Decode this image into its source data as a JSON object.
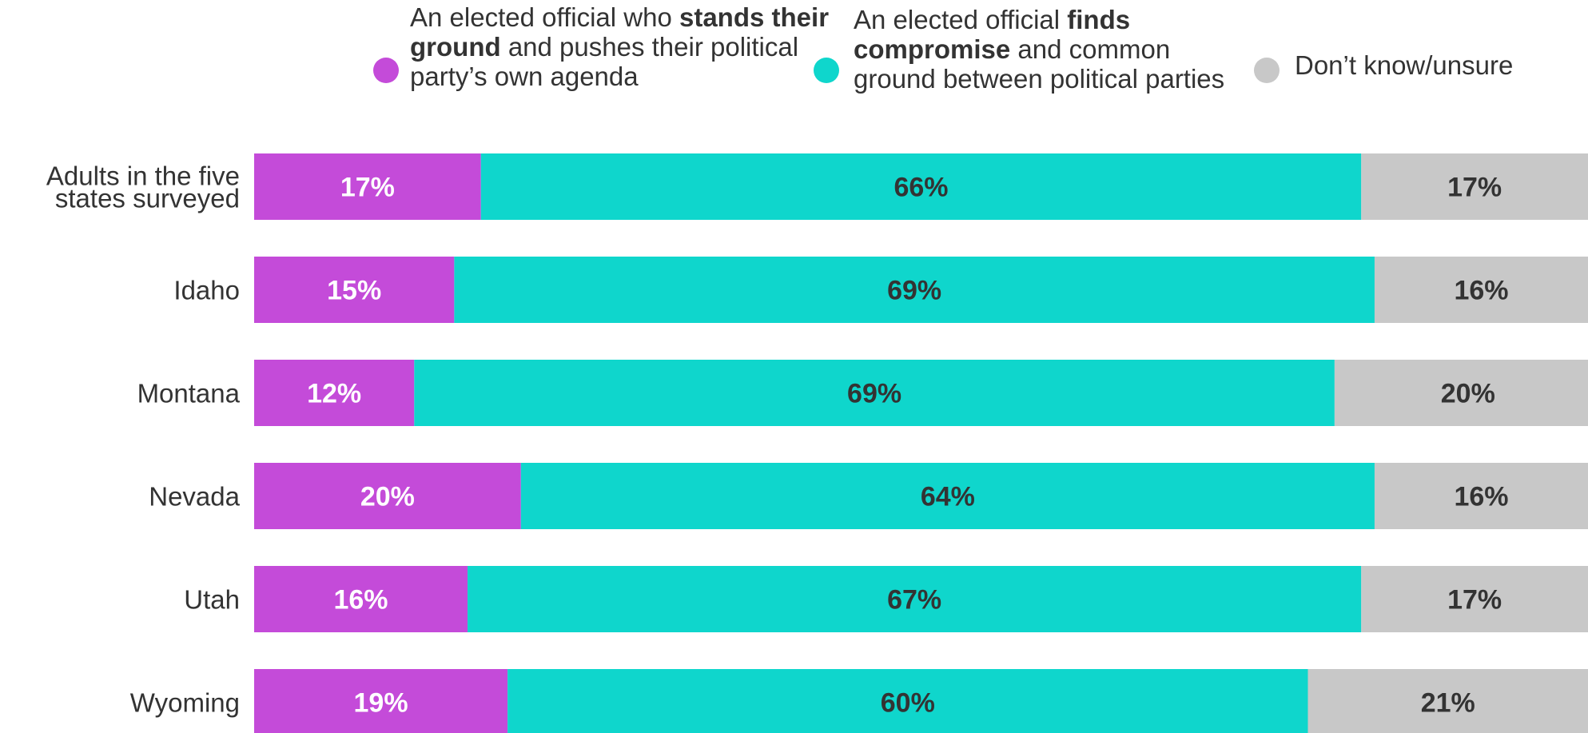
{
  "chart_data": {
    "type": "bar",
    "orientation": "horizontal",
    "stacked": true,
    "normalized": true,
    "categories": [
      "Adults in the five states surveyed",
      "Idaho",
      "Montana",
      "Nevada",
      "Utah",
      "Wyoming"
    ],
    "series": [
      {
        "name": "An elected official who stands their ground and pushes their political party's own agenda",
        "legend_parts": [
          {
            "text": "An elected official who ",
            "bold": false
          },
          {
            "text": "stands their ground",
            "bold": true
          },
          {
            "text": " and pushes their political party’s own agenda",
            "bold": false
          }
        ],
        "color": "#c44bd9",
        "label_color": "#ffffff",
        "values": [
          17,
          15,
          12,
          20,
          16,
          19
        ],
        "labels": [
          "17%",
          "15%",
          "12%",
          "20%",
          "16%",
          "19%"
        ]
      },
      {
        "name": "An elected official finds compromise and common ground between political parties",
        "legend_parts": [
          {
            "text": "An elected official ",
            "bold": false
          },
          {
            "text": "finds compromise",
            "bold": true
          },
          {
            "text": " and common ground between political parties",
            "bold": false
          }
        ],
        "color": "#0fd6cc",
        "label_color": "#333333",
        "values": [
          66,
          69,
          69,
          64,
          67,
          60
        ],
        "labels": [
          "66%",
          "69%",
          "69%",
          "64%",
          "67%",
          "60%"
        ]
      },
      {
        "name": "Don’t know/unsure",
        "legend_parts": [
          {
            "text": "Don’t know/unsure",
            "bold": false
          }
        ],
        "color": "#c8c8c8",
        "label_color": "#333333",
        "values": [
          17,
          16,
          20,
          16,
          17,
          21
        ],
        "labels": [
          "17%",
          "16%",
          "20%",
          "16%",
          "17%",
          "21%"
        ]
      }
    ],
    "xlim": [
      0,
      100
    ],
    "legend_position": "top",
    "grid": false,
    "title": "",
    "xlabel": "",
    "ylabel": ""
  }
}
